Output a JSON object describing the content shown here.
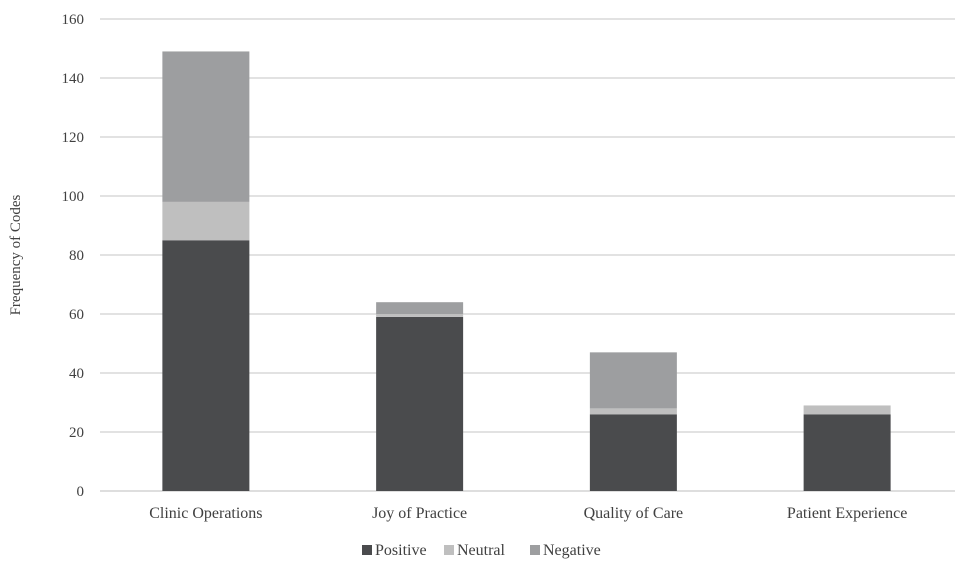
{
  "chart_data": {
    "type": "bar",
    "stacked": true,
    "categories": [
      "Clinic Operations",
      "Joy of Practice",
      "Quality of Care",
      "Patient Experience"
    ],
    "series": [
      {
        "name": "Positive",
        "values": [
          85,
          59,
          26,
          26
        ],
        "color": "#4a4b4d"
      },
      {
        "name": "Neutral",
        "values": [
          13,
          1,
          2,
          3
        ],
        "color": "#bfbfbf"
      },
      {
        "name": "Negative",
        "values": [
          51,
          4,
          19,
          0
        ],
        "color": "#9d9ea0"
      }
    ],
    "title": "",
    "xlabel": "",
    "ylabel": "Frequency of Codes",
    "ylim": [
      0,
      160
    ],
    "yticks": [
      0,
      20,
      40,
      60,
      80,
      100,
      120,
      140,
      160
    ],
    "grid": true,
    "legend": "bottom"
  }
}
